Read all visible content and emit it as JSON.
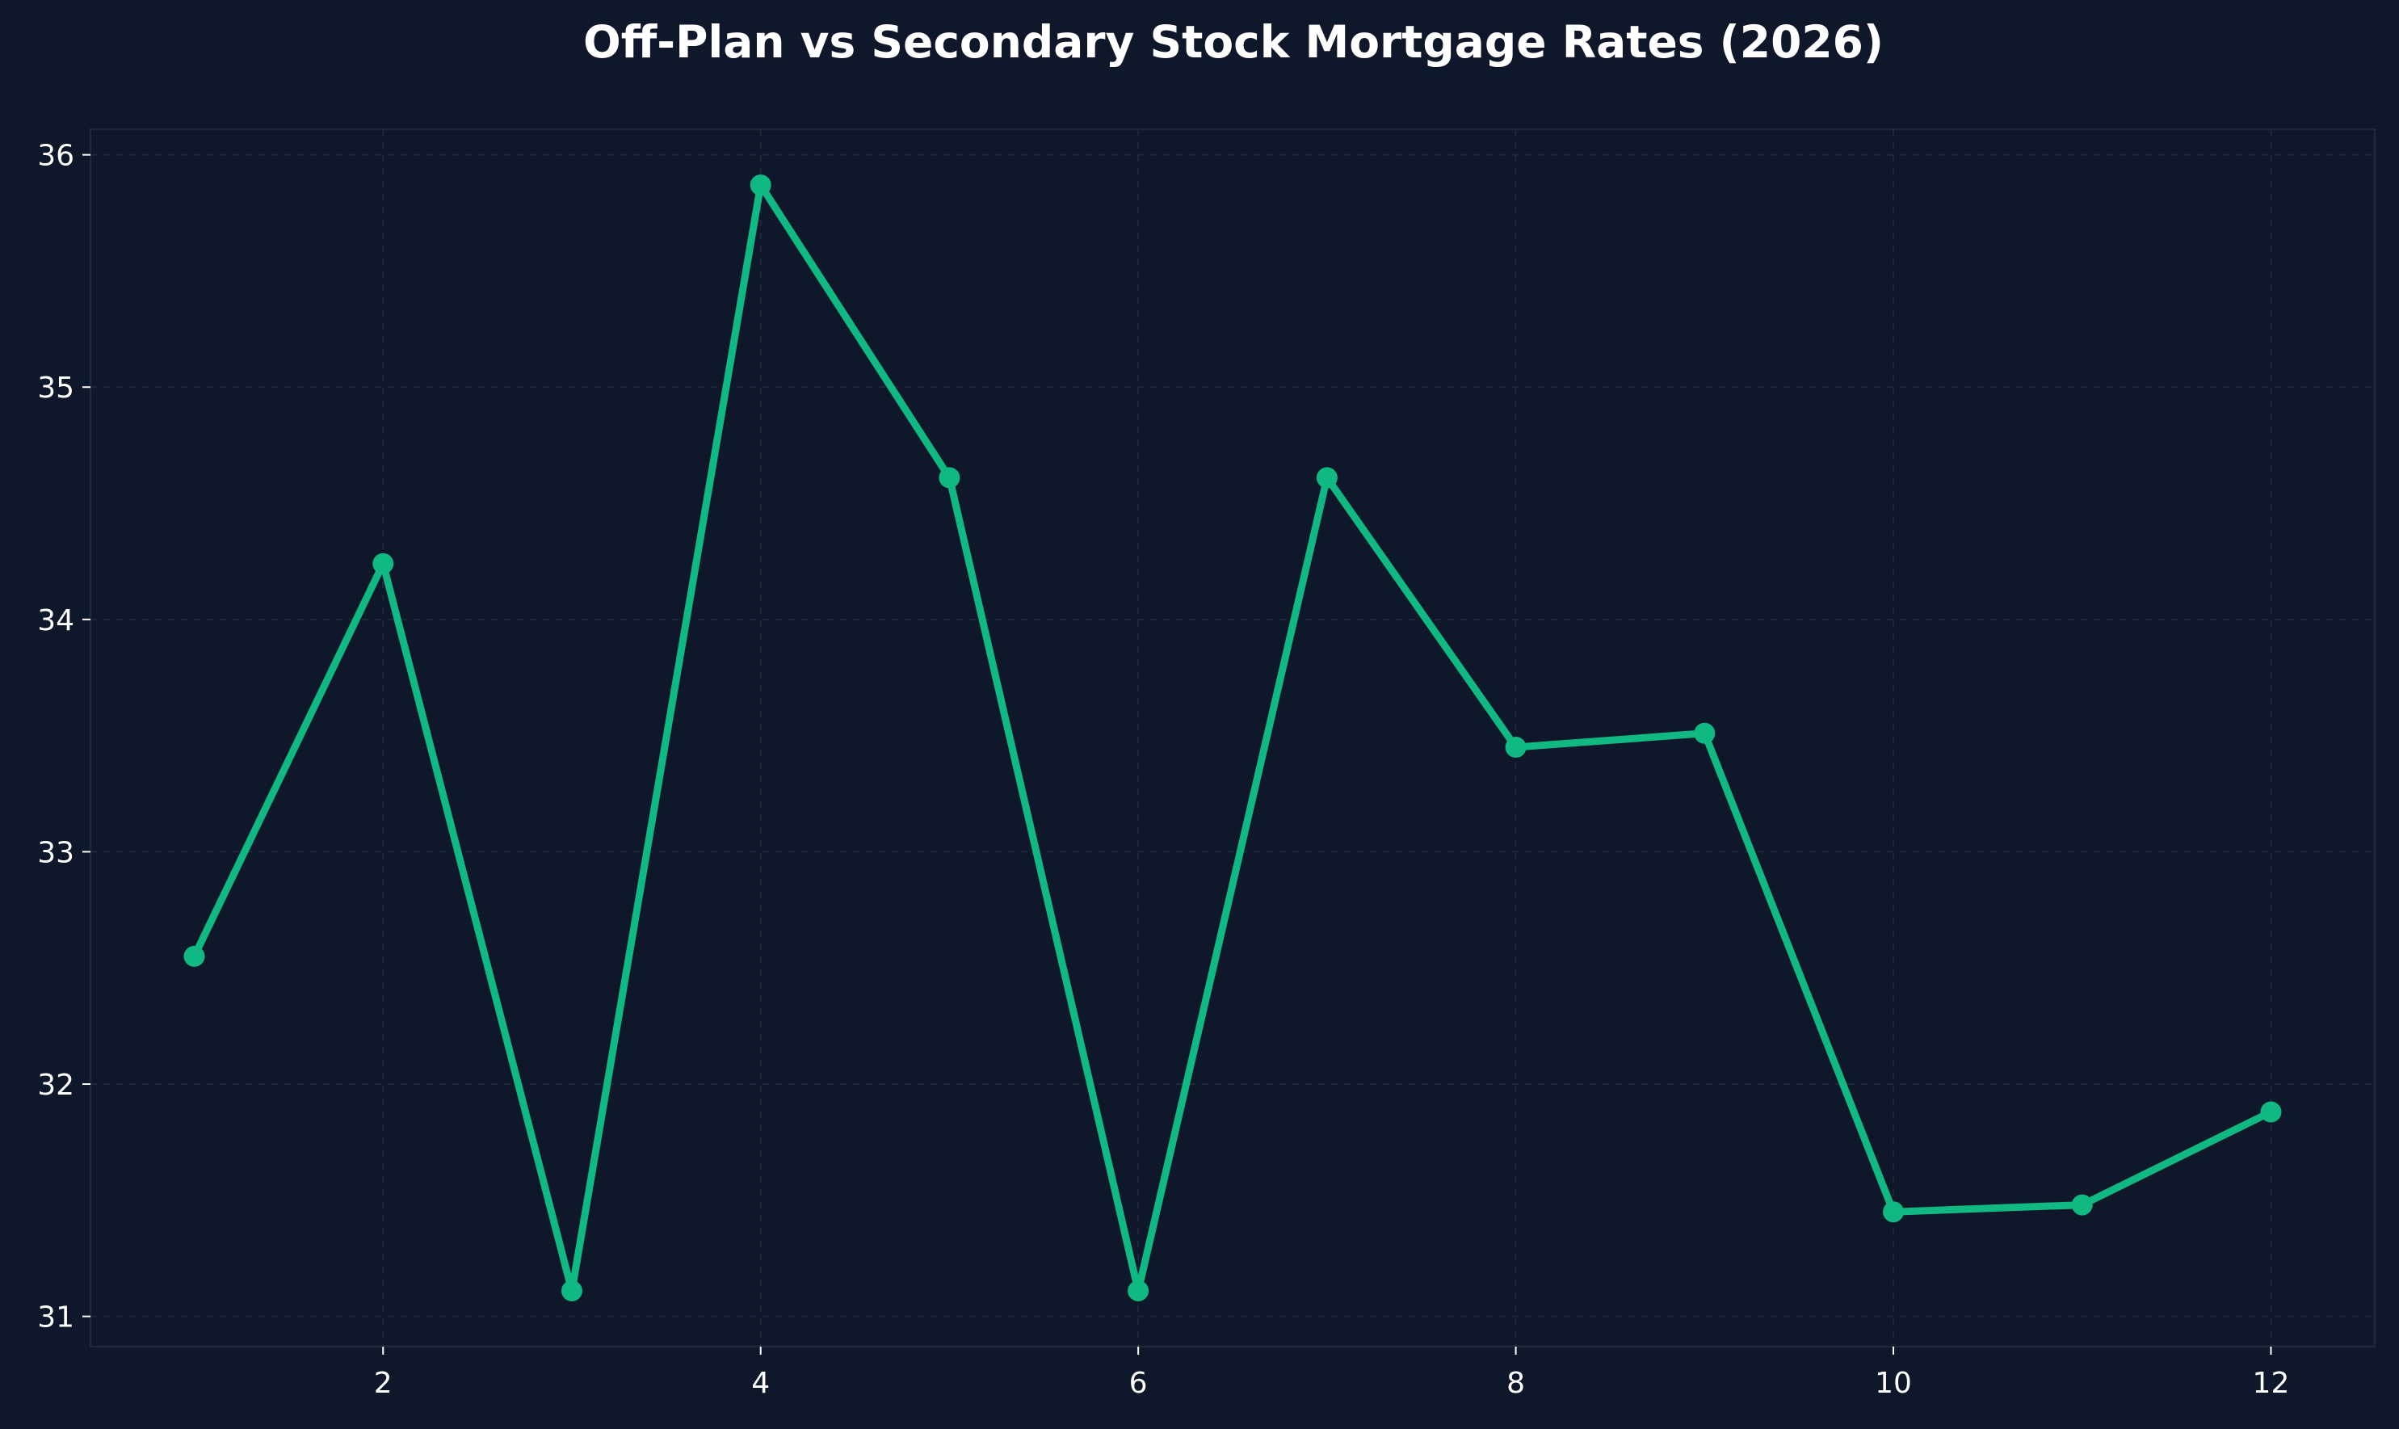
{
  "chart_data": {
    "type": "line",
    "title": "Off-Plan vs Secondary Stock Mortgage Rates (2026)",
    "xlabel": "",
    "ylabel": "",
    "x": [
      1,
      2,
      3,
      4,
      5,
      6,
      7,
      8,
      9,
      10,
      11,
      12
    ],
    "series": [
      {
        "values": [
          32.55,
          34.24,
          31.11,
          35.87,
          34.61,
          31.11,
          34.61,
          33.45,
          33.51,
          31.45,
          31.48,
          31.88
        ],
        "color": "#10b981"
      }
    ],
    "xticks": [
      2,
      4,
      6,
      8,
      10,
      12
    ],
    "yticks": [
      31,
      32,
      33,
      34,
      35,
      36
    ],
    "xlim": [
      0.45,
      12.55
    ],
    "ylim": [
      30.87,
      36.11
    ],
    "grid": true,
    "legend": "none",
    "colors": {
      "background": "#0f172a",
      "plot_background": "#0f172a",
      "grid": "#1e293b",
      "text": "#ffffff",
      "line": "#10b981"
    }
  }
}
